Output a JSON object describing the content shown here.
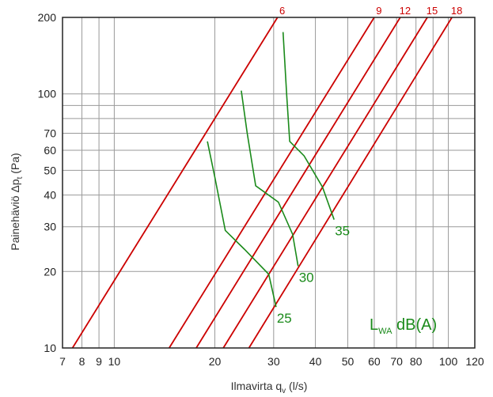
{
  "chart_data": {
    "type": "line",
    "xlabel": {
      "main": "Ilmavirta q",
      "sub": "v",
      "unit": " (l/s)"
    },
    "ylabel": {
      "main": "Painehäviö Δp",
      "sub": "t",
      "unit": " (Pa)"
    },
    "x_scale": "log",
    "y_scale": "log",
    "xlim": [
      7,
      120
    ],
    "ylim": [
      10,
      200
    ],
    "grid": true,
    "x_ticks": [
      7,
      8,
      9,
      10,
      20,
      30,
      40,
      50,
      60,
      70,
      80,
      100,
      120
    ],
    "y_ticks": [
      10,
      20,
      30,
      40,
      50,
      60,
      70,
      100,
      200
    ],
    "x_tick_labels": [
      "7",
      "8",
      "9",
      "10",
      "20",
      "30",
      "40",
      "50",
      "60",
      "70",
      "80",
      "100",
      "120"
    ],
    "y_tick_labels": [
      "10",
      "20",
      "30",
      "40",
      "50",
      "60",
      "70",
      "100",
      "200"
    ],
    "x_grid": [
      7,
      8,
      9,
      10,
      20,
      30,
      40,
      50,
      60,
      70,
      80,
      90,
      100,
      120
    ],
    "y_grid": [
      10,
      20,
      30,
      40,
      50,
      60,
      70,
      80,
      90,
      100,
      200
    ],
    "legend_text": {
      "main": "L",
      "sub": "WA",
      "unit": " dB(A)"
    },
    "colors": {
      "diameter_lines": "#cc0000",
      "sound_lines": "#1a8a1a",
      "grid": "#9a9a9a"
    },
    "diameter_series": [
      {
        "name": "6",
        "points": [
          [
            7.5,
            10
          ],
          [
            30.8,
            200
          ]
        ]
      },
      {
        "name": "9",
        "points": [
          [
            14.6,
            10
          ],
          [
            60.0,
            200
          ]
        ]
      },
      {
        "name": "12",
        "points": [
          [
            17.6,
            10
          ],
          [
            71.8,
            200
          ]
        ]
      },
      {
        "name": "15",
        "points": [
          [
            21.2,
            10
          ],
          [
            86.5,
            200
          ]
        ]
      },
      {
        "name": "18",
        "points": [
          [
            25.3,
            10
          ],
          [
            102.5,
            200
          ]
        ]
      }
    ],
    "sound_series": [
      {
        "name": "25",
        "points": [
          [
            30.5,
            14.5
          ],
          [
            29.0,
            19.5
          ],
          [
            24.5,
            24.5
          ],
          [
            21.5,
            29.0
          ],
          [
            20.0,
            47.0
          ],
          [
            19.0,
            65.0
          ]
        ]
      },
      {
        "name": "30",
        "points": [
          [
            35.5,
            21.0
          ],
          [
            34.2,
            28.0
          ],
          [
            31.0,
            37.5
          ],
          [
            26.5,
            43.5
          ],
          [
            25.0,
            70.0
          ],
          [
            24.0,
            103.0
          ]
        ]
      },
      {
        "name": "35",
        "points": [
          [
            45.5,
            32.0
          ],
          [
            42.0,
            43.0
          ],
          [
            37.0,
            57.0
          ],
          [
            33.5,
            65.0
          ],
          [
            32.8,
            100.0
          ],
          [
            32.0,
            175.0
          ]
        ]
      }
    ]
  }
}
